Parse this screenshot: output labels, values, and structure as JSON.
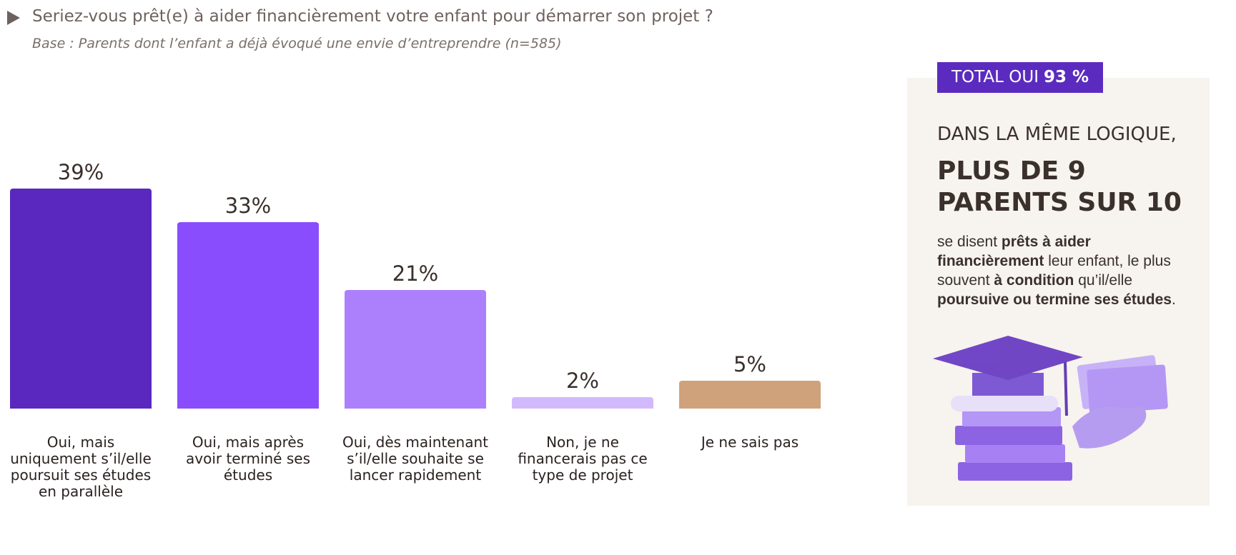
{
  "chart_data": {
    "type": "bar",
    "title": "Seriez-vous prêt(e) à aider financièrement votre enfant pour démarrer son projet ?",
    "subtitle": "Base : Parents dont l’enfant a déjà évoqué une envie d’entreprendre (n=585)",
    "categories": [
      "Oui, mais uniquement s’il/elle poursuit ses études en parallèle",
      "Oui, mais après avoir terminé ses études",
      "Oui, dès maintenant s’il/elle souhaite se lancer rapidement",
      "Non, je ne financerais pas ce type de projet",
      "Je ne sais pas"
    ],
    "values": [
      39,
      33,
      21,
      2,
      5
    ],
    "value_labels": [
      "39%",
      "33%",
      "21%",
      "2%",
      "5%"
    ],
    "colors": [
      "#5a28bf",
      "#8a4dfd",
      "#ac80fd",
      "#d2b9fc",
      "#cfa27c"
    ]
  },
  "panel": {
    "total_label": "TOTAL OUI",
    "total_value": "93 %",
    "lead": "DANS LA MÊME LOGIQUE,",
    "headline": "PLUS DE 9 PARENTS SUR 10",
    "body": [
      {
        "text": "se disent ",
        "bold": false
      },
      {
        "text": "prêts à aider financièrement",
        "bold": true
      },
      {
        "text": " leur enfant, le plus souvent ",
        "bold": false
      },
      {
        "text": "à condition",
        "bold": true
      },
      {
        "text": " qu’il/elle ",
        "bold": false
      },
      {
        "text": "poursuive ou termine ses études",
        "bold": true
      },
      {
        "text": ".",
        "bold": false
      }
    ]
  }
}
